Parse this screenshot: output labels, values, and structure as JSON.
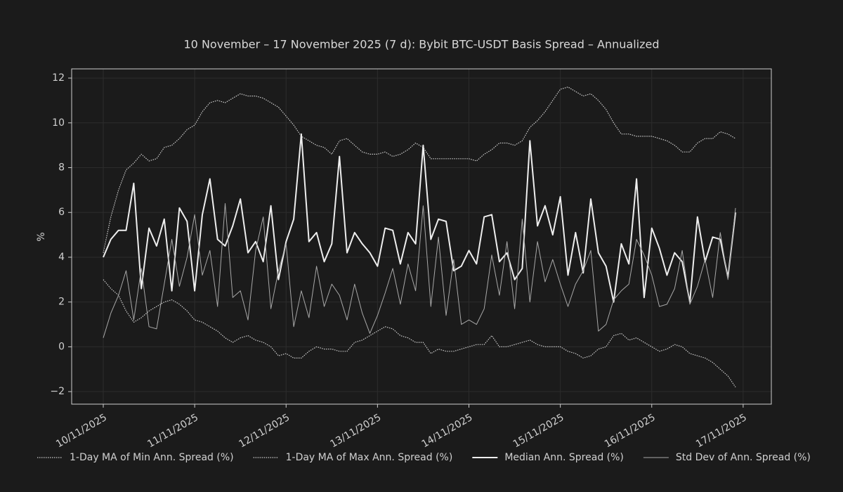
{
  "chart_data": {
    "type": "line",
    "title": "10 November – 17 November 2025 (7 d): Bybit BTC-USDT Basis Spread – Annualized",
    "y_label": "%",
    "x": [
      0,
      2,
      4,
      6,
      8,
      10,
      12,
      14,
      16,
      18,
      20,
      22,
      24,
      26,
      28,
      30,
      32,
      34,
      36,
      38,
      40,
      42,
      44,
      46,
      48,
      50,
      52,
      54,
      56,
      58,
      60,
      62,
      64,
      66,
      68,
      70,
      72,
      74,
      76,
      78,
      80,
      82,
      84,
      86,
      88,
      90,
      92,
      94,
      96,
      98,
      100,
      102,
      104,
      106,
      108,
      110,
      112,
      114,
      116,
      118,
      120,
      122,
      124,
      126,
      128,
      130,
      132,
      134,
      136,
      138,
      140,
      142,
      144,
      146,
      148,
      150,
      152,
      154,
      156,
      158,
      160,
      162,
      164,
      166
    ],
    "xlim": [
      -8.3,
      175.4
    ],
    "xticks": [
      {
        "value": 0,
        "label": "10/11/2025"
      },
      {
        "value": 24,
        "label": "11/11/2025"
      },
      {
        "value": 48,
        "label": "12/11/2025"
      },
      {
        "value": 72,
        "label": "13/11/2025"
      },
      {
        "value": 96,
        "label": "14/11/2025"
      },
      {
        "value": 120,
        "label": "15/11/2025"
      },
      {
        "value": 144,
        "label": "16/11/2025"
      },
      {
        "value": 168,
        "label": "17/11/2025"
      }
    ],
    "ylim": [
      -2.56,
      12.41
    ],
    "yticks": [
      {
        "value": -2,
        "label": "−2"
      },
      0,
      2,
      4,
      6,
      8,
      10,
      12
    ],
    "grid": true,
    "legend": "bottom",
    "series": [
      {
        "name": "1-Day MA of Min Ann. Spread (%)",
        "color": "#cccccc",
        "style": "dotted",
        "values": [
          3.0,
          2.6,
          2.3,
          1.6,
          1.1,
          1.3,
          1.6,
          1.8,
          2.0,
          2.1,
          1.9,
          1.6,
          1.2,
          1.1,
          0.9,
          0.7,
          0.4,
          0.2,
          0.4,
          0.5,
          0.3,
          0.2,
          0.0,
          -0.4,
          -0.3,
          -0.5,
          -0.5,
          -0.2,
          0.0,
          -0.1,
          -0.1,
          -0.2,
          -0.2,
          0.2,
          0.3,
          0.5,
          0.7,
          0.9,
          0.8,
          0.5,
          0.4,
          0.2,
          0.2,
          -0.3,
          -0.1,
          -0.2,
          -0.2,
          -0.1,
          0.0,
          0.1,
          0.1,
          0.5,
          0.0,
          0.0,
          0.1,
          0.2,
          0.3,
          0.1,
          0.0,
          0.0,
          0.0,
          -0.2,
          -0.3,
          -0.5,
          -0.4,
          -0.1,
          0.0,
          0.5,
          0.6,
          0.3,
          0.4,
          0.2,
          0.0,
          -0.2,
          -0.1,
          0.1,
          0.0,
          -0.3,
          -0.4,
          -0.5,
          -0.7,
          -1.0,
          -1.3,
          -1.8
        ]
      },
      {
        "name": "1-Day MA of Max Ann. Spread (%)",
        "color": "#cccccc",
        "style": "dotted",
        "values": [
          4.2,
          5.8,
          7.0,
          7.9,
          8.2,
          8.6,
          8.3,
          8.4,
          8.9,
          9.0,
          9.3,
          9.7,
          9.9,
          10.5,
          10.9,
          11.0,
          10.9,
          11.1,
          11.3,
          11.2,
          11.2,
          11.1,
          10.9,
          10.7,
          10.3,
          9.9,
          9.4,
          9.2,
          9.0,
          8.9,
          8.6,
          9.2,
          9.3,
          9.0,
          8.7,
          8.6,
          8.6,
          8.7,
          8.5,
          8.6,
          8.8,
          9.1,
          8.9,
          8.4,
          8.4,
          8.4,
          8.4,
          8.4,
          8.4,
          8.3,
          8.6,
          8.8,
          9.1,
          9.1,
          9.0,
          9.2,
          9.8,
          10.1,
          10.5,
          11.0,
          11.5,
          11.6,
          11.4,
          11.2,
          11.3,
          11.0,
          10.6,
          10.0,
          9.5,
          9.5,
          9.4,
          9.4,
          9.4,
          9.3,
          9.2,
          9.0,
          8.7,
          8.7,
          9.1,
          9.3,
          9.3,
          9.6,
          9.5,
          9.3
        ]
      },
      {
        "name": "Median Ann. Spread (%)",
        "color": "#eeeeee",
        "style": "solid",
        "width": 2,
        "values": [
          4.0,
          4.8,
          5.2,
          5.2,
          7.3,
          2.6,
          5.3,
          4.5,
          5.7,
          2.5,
          6.2,
          5.6,
          2.5,
          5.9,
          7.5,
          4.8,
          4.5,
          5.4,
          6.6,
          4.2,
          4.7,
          3.8,
          6.3,
          3.0,
          4.7,
          5.7,
          9.5,
          4.7,
          5.1,
          3.8,
          4.6,
          8.5,
          4.2,
          5.1,
          4.6,
          4.2,
          3.6,
          5.3,
          5.2,
          3.7,
          5.1,
          4.6,
          9.0,
          4.8,
          5.7,
          5.6,
          3.4,
          3.6,
          4.3,
          3.7,
          5.8,
          5.9,
          3.8,
          4.2,
          3.0,
          3.5,
          9.2,
          5.4,
          6.3,
          5.0,
          6.7,
          3.2,
          5.1,
          3.3,
          6.6,
          4.2,
          3.6,
          2.0,
          4.6,
          3.7,
          7.5,
          2.2,
          5.3,
          4.4,
          3.2,
          4.2,
          3.8,
          2.0,
          5.8,
          3.8,
          4.9,
          4.8,
          3.1,
          6.0
        ]
      },
      {
        "name": "Std Dev of Ann. Spread (%)",
        "color": "#a8a8a8",
        "style": "solid",
        "width": 1,
        "values": [
          0.4,
          1.5,
          2.3,
          3.4,
          1.2,
          3.5,
          0.9,
          0.8,
          2.8,
          4.8,
          2.7,
          4.0,
          5.9,
          3.2,
          4.3,
          1.8,
          6.4,
          2.2,
          2.5,
          1.2,
          4.3,
          5.8,
          1.7,
          3.4,
          4.6,
          0.9,
          2.5,
          1.3,
          3.6,
          1.8,
          2.8,
          2.3,
          1.2,
          2.8,
          1.5,
          0.6,
          1.4,
          2.4,
          3.5,
          1.9,
          3.7,
          2.5,
          6.3,
          1.8,
          4.9,
          1.4,
          3.9,
          1.0,
          1.2,
          1.0,
          1.7,
          4.1,
          2.3,
          4.7,
          1.7,
          5.7,
          2.0,
          4.7,
          2.9,
          3.9,
          2.8,
          1.8,
          2.8,
          3.4,
          4.3,
          0.7,
          1.0,
          2.1,
          2.5,
          2.8,
          4.8,
          4.1,
          3.2,
          1.8,
          1.9,
          2.6,
          4.3,
          1.9,
          2.7,
          3.9,
          2.2,
          5.1,
          3.0,
          6.2
        ]
      }
    ]
  }
}
